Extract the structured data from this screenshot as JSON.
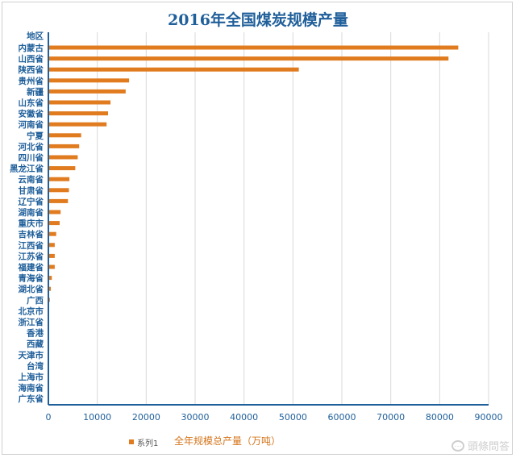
{
  "chart_data": {
    "type": "bar",
    "orientation": "horizontal",
    "title": "2016年全国煤炭规模产量",
    "xlabel": "全年规模总产量（万吨）",
    "ylabel": "",
    "category_header": "地区",
    "categories": [
      "内蒙古",
      "山西省",
      "陕西省",
      "贵州省",
      "新疆",
      "山东省",
      "安徽省",
      "河南省",
      "宁夏",
      "河北省",
      "四川省",
      "黑龙江省",
      "云南省",
      "甘肃省",
      "辽宁省",
      "湖南省",
      "重庆市",
      "吉林省",
      "江西省",
      "江苏省",
      "福建省",
      "青海省",
      "湖北省",
      "广西",
      "北京市",
      "浙江省",
      "香港",
      "西藏",
      "天津市",
      "台湾",
      "上海市",
      "海南省",
      "广东省"
    ],
    "series": [
      {
        "name": "系列1",
        "color": "#e07b1f",
        "values": [
          83800,
          81800,
          51200,
          16500,
          15800,
          12700,
          12200,
          11900,
          6700,
          6300,
          6000,
          5500,
          4300,
          4200,
          4000,
          2500,
          2300,
          1600,
          1300,
          1300,
          1300,
          700,
          500,
          300,
          0,
          0,
          0,
          0,
          0,
          0,
          0,
          0,
          0
        ]
      }
    ],
    "xlim": [
      0,
      90000
    ],
    "xticks": [
      0,
      10000,
      20000,
      30000,
      40000,
      50000,
      60000,
      70000,
      80000,
      90000
    ],
    "grid": "vertical",
    "legend": "bottom-left"
  },
  "watermark": "頭條問答"
}
